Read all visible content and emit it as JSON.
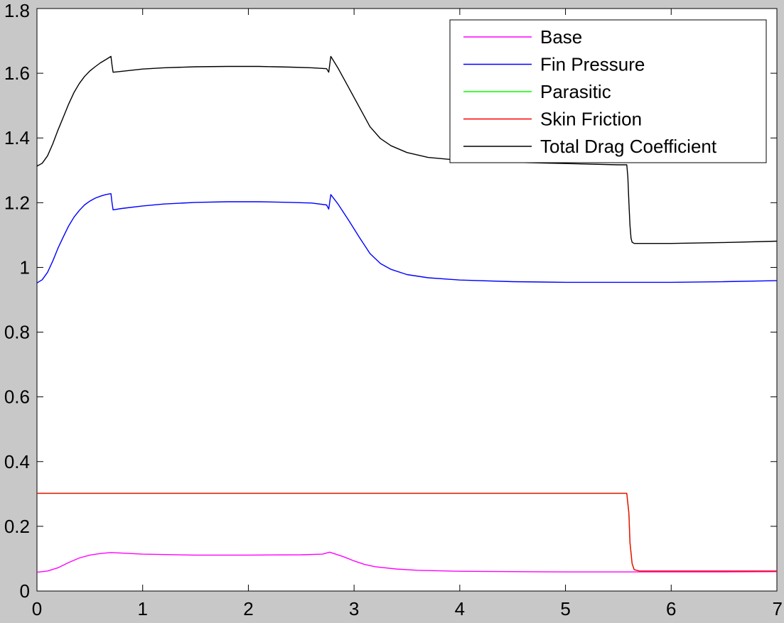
{
  "chart_data": {
    "type": "line",
    "title": "",
    "xlabel": "",
    "ylabel": "",
    "xlim": [
      0,
      7
    ],
    "ylim": [
      0,
      1.8
    ],
    "xticks": [
      "0",
      "1",
      "2",
      "3",
      "4",
      "5",
      "6",
      "7"
    ],
    "yticks": [
      "0",
      "0.2",
      "0.4",
      "0.6",
      "0.8",
      "1",
      "1.2",
      "1.4",
      "1.6",
      "1.8"
    ],
    "grid": false,
    "legend_position": "top-right",
    "series": [
      {
        "name": "Base",
        "color": "#ff00ff",
        "x": [
          0,
          0.1,
          0.2,
          0.3,
          0.4,
          0.5,
          0.6,
          0.7,
          1.0,
          1.5,
          2.0,
          2.5,
          2.7,
          2.77,
          2.9,
          3.0,
          3.1,
          3.2,
          3.4,
          3.6,
          4.0,
          4.5,
          5.0,
          5.5,
          6.0,
          6.5,
          7.0
        ],
        "y": [
          0.058,
          0.062,
          0.072,
          0.088,
          0.102,
          0.111,
          0.116,
          0.119,
          0.114,
          0.111,
          0.111,
          0.112,
          0.114,
          0.12,
          0.106,
          0.093,
          0.082,
          0.075,
          0.068,
          0.064,
          0.061,
          0.06,
          0.059,
          0.059,
          0.059,
          0.059,
          0.06
        ]
      },
      {
        "name": "Fin Pressure",
        "color": "#0000ff",
        "x": [
          0,
          0.05,
          0.1,
          0.15,
          0.2,
          0.25,
          0.3,
          0.35,
          0.4,
          0.45,
          0.5,
          0.55,
          0.6,
          0.65,
          0.7,
          0.71,
          0.72,
          0.8,
          1.0,
          1.2,
          1.5,
          1.8,
          2.1,
          2.4,
          2.6,
          2.74,
          2.76,
          2.78,
          2.85,
          2.95,
          3.05,
          3.15,
          3.25,
          3.35,
          3.5,
          3.7,
          4.0,
          4.5,
          5.0,
          5.5,
          6.0,
          6.5,
          7.0
        ],
        "y": [
          0.952,
          0.962,
          0.985,
          1.02,
          1.06,
          1.095,
          1.128,
          1.155,
          1.176,
          1.193,
          1.205,
          1.214,
          1.22,
          1.225,
          1.228,
          1.2,
          1.178,
          1.182,
          1.19,
          1.196,
          1.201,
          1.203,
          1.203,
          1.201,
          1.199,
          1.193,
          1.18,
          1.225,
          1.195,
          1.145,
          1.093,
          1.043,
          1.012,
          0.994,
          0.978,
          0.968,
          0.961,
          0.956,
          0.954,
          0.954,
          0.954,
          0.956,
          0.959
        ]
      },
      {
        "name": "Parasitic",
        "color": "#00ff00",
        "x": [
          0,
          5.58,
          5.6,
          5.61,
          5.63,
          5.65,
          5.7,
          6.0,
          6.5,
          7.0
        ],
        "y": [
          0.302,
          0.302,
          0.24,
          0.15,
          0.085,
          0.066,
          0.062,
          0.062,
          0.062,
          0.062
        ]
      },
      {
        "name": "Skin Friction",
        "color": "#ff0000",
        "x": [
          0,
          5.58,
          5.6,
          5.61,
          5.63,
          5.65,
          5.7,
          6.0,
          6.5,
          7.0
        ],
        "y": [
          0.302,
          0.302,
          0.24,
          0.15,
          0.085,
          0.066,
          0.062,
          0.062,
          0.062,
          0.062
        ]
      },
      {
        "name": "Total Drag Coefficient",
        "color": "#000000",
        "x": [
          0,
          0.05,
          0.1,
          0.15,
          0.2,
          0.25,
          0.3,
          0.35,
          0.4,
          0.45,
          0.5,
          0.55,
          0.6,
          0.65,
          0.7,
          0.71,
          0.72,
          0.8,
          1.0,
          1.2,
          1.5,
          1.8,
          2.1,
          2.4,
          2.6,
          2.74,
          2.76,
          2.78,
          2.85,
          2.95,
          3.05,
          3.15,
          3.25,
          3.35,
          3.5,
          3.7,
          4.0,
          4.5,
          5.0,
          5.5,
          5.58,
          5.59,
          5.6,
          5.61,
          5.62,
          5.63,
          5.65,
          5.7,
          6.0,
          6.5,
          7.0
        ],
        "y": [
          1.313,
          1.322,
          1.345,
          1.382,
          1.425,
          1.465,
          1.505,
          1.54,
          1.568,
          1.59,
          1.607,
          1.62,
          1.632,
          1.642,
          1.652,
          1.625,
          1.603,
          1.606,
          1.613,
          1.617,
          1.62,
          1.621,
          1.621,
          1.619,
          1.617,
          1.614,
          1.603,
          1.652,
          1.615,
          1.555,
          1.495,
          1.435,
          1.398,
          1.376,
          1.355,
          1.34,
          1.331,
          1.325,
          1.321,
          1.317,
          1.317,
          1.28,
          1.2,
          1.13,
          1.09,
          1.078,
          1.074,
          1.074,
          1.074,
          1.077,
          1.081
        ]
      }
    ]
  }
}
